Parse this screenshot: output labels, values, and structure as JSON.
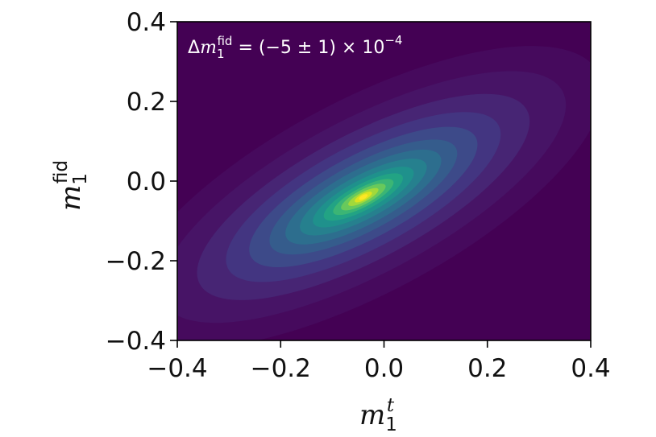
{
  "chart_data": {
    "type": "heatmap",
    "title": "",
    "xlabel": {
      "base": "m",
      "sub": "1",
      "sup": "t"
    },
    "ylabel": {
      "base": "m",
      "sub": "1",
      "sup": "fid"
    },
    "xlim": [
      -0.4,
      0.4
    ],
    "ylim": [
      -0.4,
      0.4
    ],
    "x_ticks": [
      -0.4,
      -0.2,
      0.0,
      0.2,
      0.4
    ],
    "y_ticks": [
      -0.4,
      -0.2,
      0.0,
      0.2,
      0.4
    ],
    "x_tick_labels": [
      "−0.4",
      "−0.2",
      "0.0",
      "0.2",
      "0.4"
    ],
    "y_tick_labels": [
      "−0.4",
      "−0.2",
      "0.0",
      "0.2",
      "0.4"
    ],
    "colormap": "viridis",
    "annotation": {
      "prefix": "Δ",
      "base": "m",
      "sub": "1",
      "sup": "fid",
      "equals": " = (−5 ± 1) × 10",
      "exponent": "−4"
    },
    "density_peak": {
      "x": -0.04,
      "y": -0.04
    },
    "density_orientation": "positive correlation along diagonal"
  }
}
